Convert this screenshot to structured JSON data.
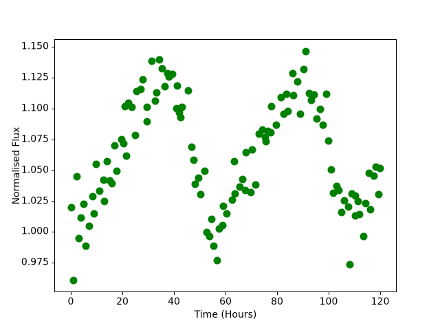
{
  "chart_data": {
    "type": "scatter",
    "title": "",
    "xlabel": "Time (Hours)",
    "ylabel": "Normalised Flux",
    "marker_color": "#008000",
    "marker_size_px": 11,
    "background_color": "#ffffff",
    "spine_color": "#000000",
    "grid": false,
    "legend_position": "none",
    "xlim": [
      -6.4,
      126.4
    ],
    "ylim": [
      0.9513,
      1.1561
    ],
    "xticks": [
      {
        "value": 0,
        "label": "0"
      },
      {
        "value": 20,
        "label": "20"
      },
      {
        "value": 40,
        "label": "40"
      },
      {
        "value": 60,
        "label": "60"
      },
      {
        "value": 80,
        "label": "80"
      },
      {
        "value": 100,
        "label": "100"
      },
      {
        "value": 120,
        "label": "120"
      }
    ],
    "yticks": [
      {
        "value": 0.975,
        "label": "0.975"
      },
      {
        "value": 1.0,
        "label": "1.000"
      },
      {
        "value": 1.025,
        "label": "1.025"
      },
      {
        "value": 1.05,
        "label": "1.050"
      },
      {
        "value": 1.075,
        "label": "1.075"
      },
      {
        "value": 1.1,
        "label": "1.100"
      },
      {
        "value": 1.125,
        "label": "1.125"
      },
      {
        "value": 1.15,
        "label": "1.150"
      }
    ],
    "points": [
      [
        0.1,
        1.0205
      ],
      [
        0.7,
        0.9614
      ],
      [
        2.1,
        1.0454
      ],
      [
        2.9,
        0.995
      ],
      [
        3.8,
        1.012
      ],
      [
        4.7,
        1.023
      ],
      [
        5.6,
        0.9889
      ],
      [
        6.8,
        1.0054
      ],
      [
        8.3,
        1.029
      ],
      [
        8.9,
        1.0151
      ],
      [
        9.6,
        1.0552
      ],
      [
        10.9,
        1.0335
      ],
      [
        12.5,
        1.0427
      ],
      [
        12.7,
        1.0252
      ],
      [
        13.9,
        1.0577
      ],
      [
        14.9,
        1.0418
      ],
      [
        15.7,
        1.04
      ],
      [
        16.9,
        1.0702
      ],
      [
        17.6,
        1.05
      ],
      [
        19.4,
        1.0753
      ],
      [
        20.3,
        1.072
      ],
      [
        21.2,
        1.062
      ],
      [
        24.9,
        1.0785
      ],
      [
        20.8,
        1.1021
      ],
      [
        22.1,
        1.1047
      ],
      [
        23.4,
        1.1014
      ],
      [
        25.4,
        1.1144
      ],
      [
        26.8,
        1.1162
      ],
      [
        27.8,
        1.1241
      ],
      [
        29.3,
        1.1014
      ],
      [
        32.5,
        1.1066
      ],
      [
        33.0,
        1.113
      ],
      [
        29.2,
        1.09
      ],
      [
        31.1,
        1.139
      ],
      [
        34.0,
        1.14
      ],
      [
        35.2,
        1.133
      ],
      [
        36.3,
        1.1181
      ],
      [
        37.2,
        1.129
      ],
      [
        37.9,
        1.126
      ],
      [
        39.1,
        1.128
      ],
      [
        41.0,
        1.119
      ],
      [
        45.2,
        1.115
      ],
      [
        40.8,
        1.1003
      ],
      [
        42.9,
        1.1013
      ],
      [
        41.9,
        1.097
      ],
      [
        42.3,
        1.0933
      ],
      [
        46.7,
        1.0691
      ],
      [
        47.4,
        1.0588
      ],
      [
        48.0,
        1.0394
      ],
      [
        49.3,
        1.0442
      ],
      [
        50.2,
        1.0307
      ],
      [
        51.6,
        1.05
      ],
      [
        52.4,
        1.0001
      ],
      [
        53.7,
        0.9971
      ],
      [
        54.5,
        1.0109
      ],
      [
        55.2,
        0.9894
      ],
      [
        56.5,
        0.9775
      ],
      [
        57.2,
        1.0028
      ],
      [
        58.6,
        1.0056
      ],
      [
        58.9,
        1.0216
      ],
      [
        60.3,
        1.0151
      ],
      [
        62.4,
        1.0265
      ],
      [
        63.4,
        1.0317
      ],
      [
        63.3,
        1.0574
      ],
      [
        65.4,
        1.0368
      ],
      [
        66.3,
        1.043
      ],
      [
        67.4,
        1.0344
      ],
      [
        69.6,
        1.0326
      ],
      [
        71.4,
        1.0386
      ],
      [
        67.8,
        1.0651
      ],
      [
        70.0,
        1.0669
      ],
      [
        72.8,
        1.0799
      ],
      [
        74.0,
        1.0831
      ],
      [
        75.1,
        1.0772
      ],
      [
        76.2,
        1.0819
      ],
      [
        77.3,
        1.0808
      ],
      [
        75.5,
        1.0735
      ],
      [
        79.4,
        1.0871
      ],
      [
        77.6,
        1.102
      ],
      [
        81.2,
        1.1096
      ],
      [
        82.4,
        1.096
      ],
      [
        84.0,
        1.0985
      ],
      [
        83.5,
        1.112
      ],
      [
        86.2,
        1.111
      ],
      [
        85.9,
        1.129
      ],
      [
        87.7,
        1.122
      ],
      [
        88.7,
        1.0959
      ],
      [
        90.0,
        1.132
      ],
      [
        90.9,
        1.1467
      ],
      [
        92.3,
        1.1125
      ],
      [
        94.0,
        1.1115
      ],
      [
        93.0,
        1.107
      ],
      [
        95.3,
        1.092
      ],
      [
        96.5,
        1.1
      ],
      [
        98.9,
        1.112
      ],
      [
        97.7,
        1.087
      ],
      [
        99.8,
        1.0742
      ],
      [
        100.7,
        1.051
      ],
      [
        101.6,
        1.032
      ],
      [
        102.8,
        1.0376
      ],
      [
        103.8,
        1.0345
      ],
      [
        105.8,
        1.0256
      ],
      [
        107.5,
        1.0207
      ],
      [
        104.7,
        1.0165
      ],
      [
        110.1,
        1.0137
      ],
      [
        111.8,
        1.015
      ],
      [
        108.9,
        1.0317
      ],
      [
        110.1,
        1.0295
      ],
      [
        111.1,
        1.0251
      ],
      [
        114.1,
        1.0238
      ],
      [
        116.1,
        1.0187
      ],
      [
        113.4,
        0.9968
      ],
      [
        108.1,
        0.9742
      ],
      [
        115.4,
        1.0479
      ],
      [
        117.2,
        1.046
      ],
      [
        118.1,
        1.0534
      ],
      [
        119.6,
        1.0519
      ],
      [
        119.2,
        1.0311
      ]
    ]
  }
}
